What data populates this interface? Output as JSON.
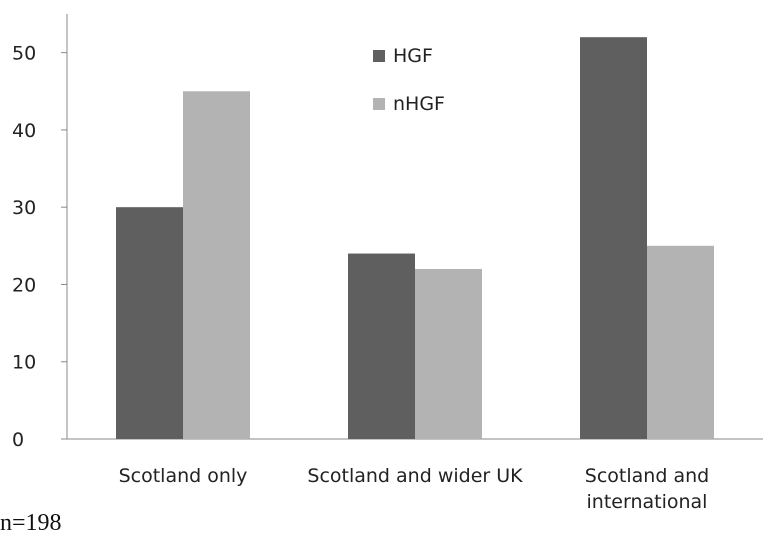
{
  "chart_data": {
    "type": "bar",
    "categories": [
      [
        "Scotland only"
      ],
      [
        "Scotland and wider UK"
      ],
      [
        "Scotland and",
        "international"
      ]
    ],
    "series": [
      {
        "name": "HGF",
        "values": [
          30,
          24,
          52
        ],
        "color": "#5f5f5f"
      },
      {
        "name": "nHGF",
        "values": [
          45,
          22,
          25
        ],
        "color": "#b3b3b3"
      }
    ],
    "ylim": [
      0,
      55
    ],
    "yticks": [
      0,
      10,
      20,
      30,
      40,
      50
    ],
    "grid": false,
    "legend_position": "top-center",
    "title": "",
    "xlabel": "",
    "ylabel": ""
  },
  "note": "n=198"
}
